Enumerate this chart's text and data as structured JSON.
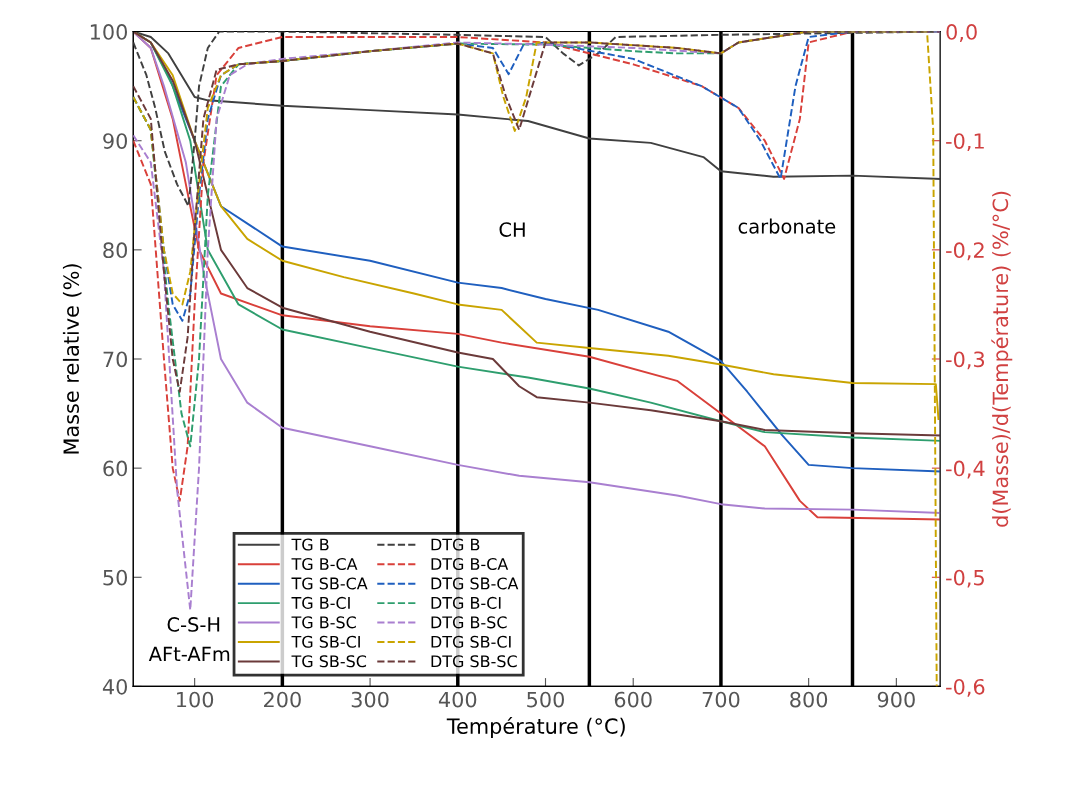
{
  "chart_data": {
    "type": "line",
    "xlabel": "Température (°C)",
    "ylabel": "Masse relative (%)",
    "y2label": "d(Masse)/d(Température) (%/°C)",
    "xlim": [
      30,
      950
    ],
    "xticks": [
      100,
      200,
      300,
      400,
      500,
      600,
      700,
      800,
      900
    ],
    "ylim": [
      40,
      100
    ],
    "yticks": [
      40,
      50,
      60,
      70,
      80,
      90,
      100
    ],
    "y2lim": [
      -0.6,
      0.0
    ],
    "y2ticks": [
      {
        "value": -0.6,
        "label": "-0,6"
      },
      {
        "value": -0.5,
        "label": "-0,5"
      },
      {
        "value": -0.4,
        "label": "-0,4"
      },
      {
        "value": -0.3,
        "label": "-0,3"
      },
      {
        "value": -0.2,
        "label": "-0,2"
      },
      {
        "value": -0.1,
        "label": "-0,1"
      },
      {
        "value": 0.0,
        "label": "0,0"
      }
    ],
    "grid": false,
    "legend": "bottom left",
    "marker": "none",
    "ref_lines": [
      {
        "axis": "x",
        "value": 200,
        "color": "#000000"
      },
      {
        "axis": "x",
        "value": 400,
        "color": "#000000"
      },
      {
        "axis": "x",
        "value": 550,
        "color": "#000000"
      },
      {
        "axis": "x",
        "value": 700,
        "color": "#000000"
      },
      {
        "axis": "x",
        "value": 850,
        "color": "#000000"
      }
    ],
    "annotations": [
      "CH",
      "carbonate",
      "C-S-H",
      "AFt-AFm"
    ],
    "series": [
      {
        "name": "TG B",
        "color": "#404040",
        "line_style": "solid",
        "x": [
          30,
          50,
          70,
          85,
          100,
          115,
          200,
          300,
          400,
          480,
          550,
          620,
          680,
          700,
          760,
          850,
          950
        ],
        "values": [
          100,
          99.5,
          98,
          96,
          94,
          93.7,
          93.2,
          92.8,
          92.4,
          91.8,
          90.2,
          89.8,
          88.5,
          87.2,
          86.7,
          86.8,
          86.5
        ]
      },
      {
        "name": "TG B-CA",
        "color": "#d9403a",
        "line_style": "solid",
        "x": [
          30,
          50,
          75,
          90,
          105,
          130,
          200,
          250,
          300,
          400,
          450,
          550,
          650,
          700,
          750,
          790,
          810,
          950
        ],
        "values": [
          100,
          98.5,
          92,
          86,
          80,
          76,
          74,
          73.5,
          73,
          72.3,
          71.5,
          70.2,
          68,
          65,
          62,
          57,
          55.5,
          55.3
        ]
      },
      {
        "name": "TG SB-CA",
        "color": "#1f5fbf",
        "line_style": "solid",
        "x": [
          30,
          50,
          70,
          100,
          130,
          200,
          300,
          400,
          450,
          500,
          560,
          640,
          700,
          730,
          770,
          800,
          850,
          950
        ],
        "values": [
          100,
          99,
          96,
          90,
          84,
          80.3,
          79,
          77,
          76.5,
          75.5,
          74.5,
          72.5,
          69.8,
          67,
          63,
          60.3,
          60,
          59.7
        ]
      },
      {
        "name": "TG B-CI",
        "color": "#2e9e6e",
        "line_style": "solid",
        "x": [
          30,
          50,
          75,
          95,
          115,
          150,
          200,
          300,
          400,
          480,
          550,
          620,
          700,
          750,
          850,
          950
        ],
        "values": [
          100,
          99,
          95,
          90,
          80,
          75,
          72.7,
          71,
          69.3,
          68.3,
          67.3,
          66,
          64.3,
          63.3,
          62.8,
          62.5
        ]
      },
      {
        "name": "TG B-SC",
        "color": "#a97fd0",
        "line_style": "solid",
        "x": [
          30,
          50,
          65,
          90,
          110,
          130,
          160,
          200,
          300,
          400,
          470,
          550,
          650,
          700,
          750,
          850,
          950
        ],
        "values": [
          100,
          98.5,
          95,
          88,
          78,
          70,
          66,
          63.7,
          62,
          60.3,
          59.3,
          58.7,
          57.5,
          56.7,
          56.3,
          56.2,
          55.9
        ]
      },
      {
        "name": "TG SB-CI",
        "color": "#c9a400",
        "line_style": "solid",
        "x": [
          30,
          50,
          75,
          100,
          130,
          160,
          200,
          270,
          350,
          400,
          450,
          470,
          490,
          550,
          640,
          700,
          760,
          850,
          945,
          948
        ],
        "values": [
          100,
          99,
          96,
          90,
          84,
          81,
          79,
          77.5,
          76,
          75,
          74.5,
          73,
          71.5,
          71,
          70.3,
          69.5,
          68.6,
          67.8,
          67.7,
          64.5
        ]
      },
      {
        "name": "TG SB-SC",
        "color": "#6b3a3a",
        "line_style": "solid",
        "x": [
          30,
          50,
          75,
          100,
          130,
          160,
          200,
          300,
          400,
          440,
          470,
          490,
          550,
          620,
          700,
          750,
          850,
          950
        ],
        "values": [
          100,
          99,
          95.5,
          90,
          80,
          76.5,
          74.7,
          72.5,
          70.6,
          70,
          67.5,
          66.5,
          66,
          65.3,
          64.3,
          63.5,
          63.2,
          63
        ]
      },
      {
        "name": "DTG B",
        "color": "#404040",
        "line_style": "dashed",
        "axis": "y2",
        "x": [
          30,
          45,
          55,
          66,
          80,
          93,
          100,
          105,
          115,
          128,
          200,
          400,
          500,
          520,
          538,
          560,
          580,
          700,
          950
        ],
        "values": [
          -0.01,
          -0.04,
          -0.07,
          -0.11,
          -0.14,
          -0.16,
          -0.1,
          -0.05,
          -0.015,
          0,
          0,
          -0.003,
          -0.005,
          -0.02,
          -0.031,
          -0.02,
          -0.005,
          -0.003,
          0
        ]
      },
      {
        "name": "DTG B-CA",
        "color": "#d9403a",
        "line_style": "dashed",
        "axis": "y2",
        "x": [
          30,
          50,
          65,
          75,
          83,
          92,
          100,
          110,
          125,
          150,
          200,
          400,
          500,
          600,
          678,
          720,
          750,
          772,
          790,
          800,
          850,
          950
        ],
        "values": [
          -0.1,
          -0.14,
          -0.3,
          -0.4,
          -0.43,
          -0.38,
          -0.25,
          -0.12,
          -0.04,
          -0.015,
          -0.005,
          -0.005,
          -0.01,
          -0.03,
          -0.05,
          -0.07,
          -0.1,
          -0.135,
          -0.08,
          -0.01,
          0,
          0
        ]
      },
      {
        "name": "DTG SB-CA",
        "color": "#1f5fbf",
        "line_style": "dashed",
        "axis": "y2",
        "x": [
          30,
          50,
          65,
          75,
          86,
          95,
          105,
          115,
          130,
          150,
          200,
          300,
          400,
          440,
          458,
          475,
          500,
          600,
          678,
          720,
          745,
          768,
          785,
          800,
          850,
          950
        ],
        "values": [
          -0.06,
          -0.09,
          -0.2,
          -0.25,
          -0.265,
          -0.24,
          -0.15,
          -0.08,
          -0.04,
          -0.03,
          -0.027,
          -0.018,
          -0.011,
          -0.015,
          -0.039,
          -0.012,
          -0.01,
          -0.025,
          -0.05,
          -0.07,
          -0.1,
          -0.135,
          -0.05,
          -0.005,
          0,
          0
        ]
      },
      {
        "name": "DTG B-CI",
        "color": "#2e9e6e",
        "line_style": "dashed",
        "axis": "y2",
        "x": [
          30,
          50,
          70,
          85,
          95,
          105,
          115,
          130,
          150,
          200,
          300,
          400,
          500,
          600,
          650,
          700,
          720,
          800,
          950
        ],
        "values": [
          -0.06,
          -0.09,
          -0.25,
          -0.35,
          -0.38,
          -0.3,
          -0.15,
          -0.05,
          -0.03,
          -0.027,
          -0.018,
          -0.011,
          -0.012,
          -0.018,
          -0.02,
          -0.02,
          -0.01,
          0,
          0
        ]
      },
      {
        "name": "DTG B-SC",
        "color": "#a97fd0",
        "line_style": "dashed",
        "axis": "y2",
        "x": [
          30,
          50,
          65,
          80,
          95,
          105,
          115,
          125,
          140,
          160,
          200,
          300,
          400,
          500,
          600,
          700,
          720,
          800,
          950
        ],
        "values": [
          -0.095,
          -0.12,
          -0.22,
          -0.42,
          -0.53,
          -0.4,
          -0.2,
          -0.08,
          -0.04,
          -0.03,
          -0.025,
          -0.018,
          -0.01,
          -0.012,
          -0.015,
          -0.02,
          -0.01,
          0,
          0
        ]
      },
      {
        "name": "DTG SB-CI",
        "color": "#c9a400",
        "line_style": "dashed",
        "axis": "y2",
        "x": [
          30,
          50,
          65,
          75,
          86,
          95,
          105,
          115,
          130,
          150,
          200,
          300,
          400,
          440,
          452,
          465,
          478,
          490,
          550,
          650,
          700,
          720,
          800,
          935,
          942,
          946
        ],
        "values": [
          -0.06,
          -0.09,
          -0.2,
          -0.24,
          -0.25,
          -0.22,
          -0.14,
          -0.07,
          -0.04,
          -0.03,
          -0.027,
          -0.018,
          -0.011,
          -0.02,
          -0.06,
          -0.091,
          -0.06,
          -0.01,
          -0.01,
          -0.015,
          -0.02,
          -0.01,
          0,
          0,
          -0.09,
          -0.6
        ]
      },
      {
        "name": "DTG SB-SC",
        "color": "#6b3a3a",
        "line_style": "dashed",
        "axis": "y2",
        "x": [
          30,
          50,
          65,
          75,
          83,
          92,
          100,
          110,
          125,
          150,
          200,
          300,
          400,
          440,
          455,
          470,
          485,
          500,
          550,
          650,
          700,
          720,
          800,
          950
        ],
        "values": [
          -0.05,
          -0.08,
          -0.22,
          -0.3,
          -0.33,
          -0.28,
          -0.18,
          -0.08,
          -0.035,
          -0.03,
          -0.027,
          -0.018,
          -0.011,
          -0.02,
          -0.06,
          -0.09,
          -0.05,
          -0.01,
          -0.01,
          -0.015,
          -0.02,
          -0.01,
          0,
          0
        ]
      }
    ]
  }
}
